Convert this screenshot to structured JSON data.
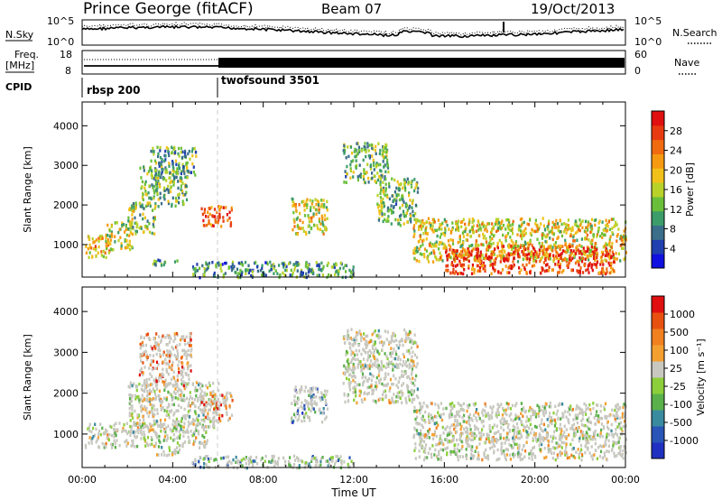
{
  "header": {
    "site": "Prince George (fitACF)",
    "beam": "Beam 07",
    "date": "19/Oct/2013"
  },
  "strips": {
    "nsky_label": "N.Sky",
    "nsky_ticks": [
      "10^5",
      "10^0"
    ],
    "nsearch_label": "N.Search",
    "nsearch_ticks": [
      "10^5",
      "10^0"
    ],
    "freq_label_line1": "Freq.",
    "freq_label_line2": "[MHz]",
    "freq_ticks": [
      "18",
      "8"
    ],
    "nave_label": "Nave",
    "nave_ticks": [
      "60",
      "0"
    ],
    "cpid_label": "CPID",
    "modes": [
      {
        "name": "rbsp 200",
        "start_hour": 0
      },
      {
        "name": "twofsound 3501",
        "start_hour": 6
      }
    ]
  },
  "colors": {
    "power": [
      "#1010e0",
      "#2040b0",
      "#3a6e8a",
      "#3c9c6a",
      "#6abf3a",
      "#b8d22a",
      "#f2c01a",
      "#f59a10",
      "#f06a10",
      "#e83a10",
      "#e01010"
    ],
    "velocity": [
      "#2030c0",
      "#2a55b8",
      "#3a8aa0",
      "#5ab04a",
      "#8ccf3a",
      "#c8c8c0",
      "#f4a030",
      "#f08020",
      "#e85010",
      "#e01010"
    ]
  },
  "chart_data": [
    {
      "type": "heatmap",
      "title": "",
      "xlabel": "Time UT",
      "ylabel": "Slant Range [km]",
      "x_ticks": [
        "00:00",
        "04:00",
        "08:00",
        "12:00",
        "16:00",
        "20:00",
        "00:00"
      ],
      "xlim_hours": [
        0,
        24
      ],
      "ylim_km": [
        180,
        4600
      ],
      "y_ticks": [
        "1000",
        "2000",
        "3000",
        "4000"
      ],
      "colorbar_label": "Power [dB]",
      "colorbar_ticks": [
        "28",
        "24",
        "20",
        "16",
        "12",
        "8",
        "4"
      ],
      "colorbar_range": [
        0,
        30
      ],
      "regions": [
        {
          "t0": 0.1,
          "t1": 1.2,
          "r0": 700,
          "r1": 1250,
          "level": 0.65
        },
        {
          "t0": 1.0,
          "t1": 2.2,
          "r0": 900,
          "r1": 1600,
          "level": 0.5
        },
        {
          "t0": 2.0,
          "t1": 3.2,
          "r0": 1300,
          "r1": 2100,
          "level": 0.45
        },
        {
          "t0": 2.5,
          "t1": 4.6,
          "r0": 2000,
          "r1": 3000,
          "level": 0.4
        },
        {
          "t0": 3.0,
          "t1": 5.0,
          "r0": 2700,
          "r1": 3500,
          "level": 0.35
        },
        {
          "t0": 5.2,
          "t1": 6.6,
          "r0": 1500,
          "r1": 2000,
          "level": 0.8
        },
        {
          "t0": 3.0,
          "t1": 4.2,
          "r0": 500,
          "r1": 650,
          "level": 0.3
        },
        {
          "t0": 4.8,
          "t1": 12.0,
          "r0": 200,
          "r1": 600,
          "level": 0.3
        },
        {
          "t0": 9.2,
          "t1": 10.8,
          "r0": 1300,
          "r1": 2200,
          "level": 0.55
        },
        {
          "t0": 11.5,
          "t1": 13.5,
          "r0": 2600,
          "r1": 3600,
          "level": 0.4
        },
        {
          "t0": 13.0,
          "t1": 14.8,
          "r0": 1500,
          "r1": 2700,
          "level": 0.4
        },
        {
          "t0": 14.6,
          "t1": 24.0,
          "r0": 600,
          "r1": 1700,
          "level": 0.55
        },
        {
          "t0": 16.0,
          "t1": 23.5,
          "r0": 300,
          "r1": 1000,
          "level": 0.85
        }
      ]
    },
    {
      "type": "heatmap",
      "title": "",
      "xlabel": "Time UT",
      "ylabel": "Slant Range [km]",
      "x_ticks": [
        "00:00",
        "04:00",
        "08:00",
        "12:00",
        "16:00",
        "20:00",
        "00:00"
      ],
      "xlim_hours": [
        0,
        24
      ],
      "ylim_km": [
        180,
        4600
      ],
      "y_ticks": [
        "1000",
        "2000",
        "3000",
        "4000"
      ],
      "colorbar_label": "Velocity [m s⁻¹]",
      "colorbar_ticks": [
        "1000",
        "500",
        "100",
        "25",
        "-25",
        "-100",
        "-500",
        "-1000"
      ],
      "colorbar_range": [
        -1000,
        1000
      ],
      "regions": [
        {
          "t0": 0.1,
          "t1": 5.5,
          "r0": 700,
          "r1": 1300,
          "level": 0.5
        },
        {
          "t0": 2.0,
          "t1": 6.0,
          "r0": 1200,
          "r1": 2300,
          "level": 0.5
        },
        {
          "t0": 2.5,
          "t1": 4.8,
          "r0": 2200,
          "r1": 3500,
          "level": 0.75
        },
        {
          "t0": 5.2,
          "t1": 6.6,
          "r0": 1350,
          "r1": 2050,
          "level": 0.75
        },
        {
          "t0": 3.0,
          "t1": 4.4,
          "r0": 500,
          "r1": 650,
          "level": 0.5
        },
        {
          "t0": 4.8,
          "t1": 12.0,
          "r0": 200,
          "r1": 500,
          "level": 0.35
        },
        {
          "t0": 9.2,
          "t1": 10.8,
          "r0": 1300,
          "r1": 2200,
          "level": 0.3
        },
        {
          "t0": 11.5,
          "t1": 14.8,
          "r0": 1800,
          "r1": 3600,
          "level": 0.5
        },
        {
          "t0": 14.6,
          "t1": 24.0,
          "r0": 400,
          "r1": 1800,
          "level": 0.5
        }
      ]
    }
  ]
}
